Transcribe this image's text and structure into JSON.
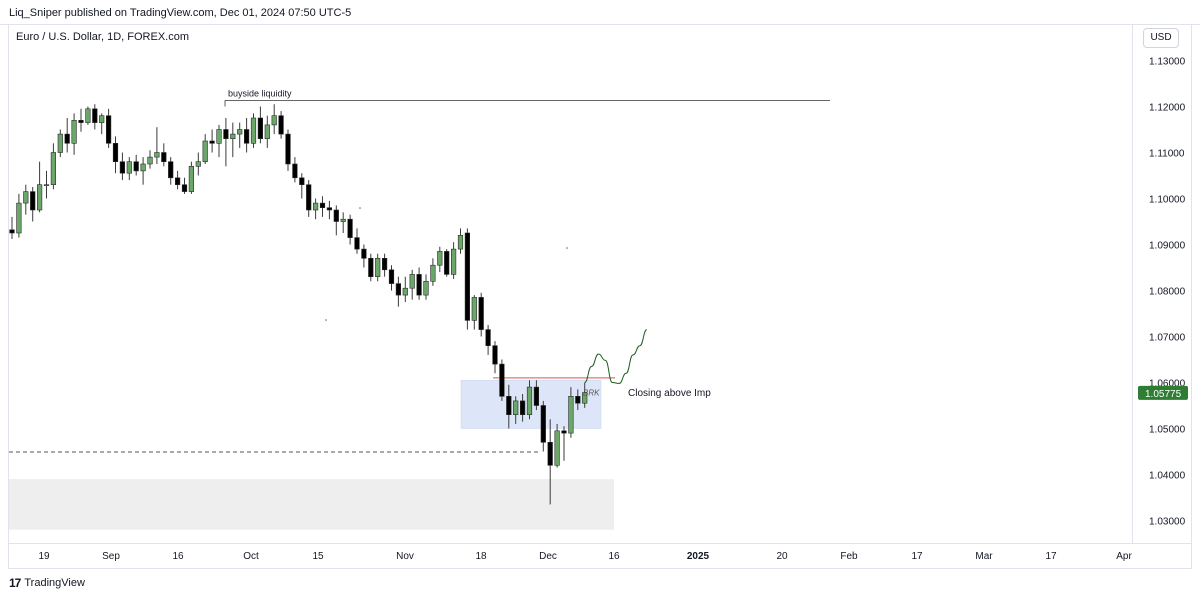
{
  "header": {
    "publish_line": "Liq_Sniper published on TradingView.com, Dec 01, 2024 07:50 UTC-5"
  },
  "chart_title": "Euro / U.S. Dollar, 1D, FOREX.com",
  "currency_button": "USD",
  "footer": {
    "brand": "TradingView",
    "logo_glyph": "17"
  },
  "colors": {
    "bull_fill": "#6aa86a",
    "bull_wick": "#3b3b3b",
    "bear_fill": "#000000",
    "price_label_bg": "#2e7d32",
    "resistance_line": "#e57373",
    "zone_fill": "#dce6f8",
    "demand_fill": "#eeeeee"
  },
  "chart_data": {
    "type": "candlestick",
    "title": "Euro / U.S. Dollar, 1D, FOREX.com",
    "y_axis": {
      "ticks": [
        "1.13000",
        "1.12000",
        "1.11000",
        "1.10000",
        "1.09000",
        "1.08000",
        "1.07000",
        "1.06000",
        "1.05000",
        "1.04000",
        "1.03000"
      ],
      "tick_values": [
        1.13,
        1.12,
        1.11,
        1.1,
        1.09,
        1.08,
        1.07,
        1.06,
        1.05,
        1.04,
        1.03
      ],
      "range": [
        1.028,
        1.135
      ]
    },
    "x_axis": {
      "ticks": [
        "19",
        "Sep",
        "16",
        "Oct",
        "15",
        "Nov",
        "18",
        "Dec",
        "16",
        "2025",
        "20",
        "Feb",
        "17",
        "Mar",
        "17",
        "Apr"
      ],
      "bold_ticks": [
        "2025"
      ]
    },
    "last_price": "1.05775",
    "candles": [
      {
        "o": 1.0932,
        "h": 1.096,
        "l": 1.0912,
        "c": 1.0925
      },
      {
        "o": 1.0925,
        "h": 1.101,
        "l": 1.0915,
        "c": 1.099
      },
      {
        "o": 1.099,
        "h": 1.103,
        "l": 1.0965,
        "c": 1.1015
      },
      {
        "o": 1.1015,
        "h": 1.1025,
        "l": 1.095,
        "c": 1.0975
      },
      {
        "o": 1.0975,
        "h": 1.108,
        "l": 1.097,
        "c": 1.103
      },
      {
        "o": 1.103,
        "h": 1.106,
        "l": 1.1,
        "c": 1.103
      },
      {
        "o": 1.103,
        "h": 1.112,
        "l": 1.102,
        "c": 1.11
      },
      {
        "o": 1.11,
        "h": 1.115,
        "l": 1.109,
        "c": 1.114
      },
      {
        "o": 1.114,
        "h": 1.1175,
        "l": 1.11,
        "c": 1.112
      },
      {
        "o": 1.112,
        "h": 1.1185,
        "l": 1.1095,
        "c": 1.117
      },
      {
        "o": 1.117,
        "h": 1.1195,
        "l": 1.1145,
        "c": 1.1165
      },
      {
        "o": 1.1165,
        "h": 1.12,
        "l": 1.116,
        "c": 1.1195
      },
      {
        "o": 1.1195,
        "h": 1.1205,
        "l": 1.115,
        "c": 1.1165
      },
      {
        "o": 1.1165,
        "h": 1.1185,
        "l": 1.114,
        "c": 1.118
      },
      {
        "o": 1.118,
        "h": 1.1195,
        "l": 1.111,
        "c": 1.112
      },
      {
        "o": 1.112,
        "h": 1.1135,
        "l": 1.1055,
        "c": 1.108
      },
      {
        "o": 1.108,
        "h": 1.11,
        "l": 1.104,
        "c": 1.1055
      },
      {
        "o": 1.1055,
        "h": 1.109,
        "l": 1.104,
        "c": 1.108
      },
      {
        "o": 1.108,
        "h": 1.1095,
        "l": 1.105,
        "c": 1.106
      },
      {
        "o": 1.106,
        "h": 1.109,
        "l": 1.103,
        "c": 1.1075
      },
      {
        "o": 1.1075,
        "h": 1.1105,
        "l": 1.1065,
        "c": 1.109
      },
      {
        "o": 1.109,
        "h": 1.1155,
        "l": 1.1075,
        "c": 1.11
      },
      {
        "o": 1.11,
        "h": 1.112,
        "l": 1.107,
        "c": 1.108
      },
      {
        "o": 1.108,
        "h": 1.109,
        "l": 1.103,
        "c": 1.1045
      },
      {
        "o": 1.1045,
        "h": 1.106,
        "l": 1.102,
        "c": 1.103
      },
      {
        "o": 1.103,
        "h": 1.1045,
        "l": 1.101,
        "c": 1.1015
      },
      {
        "o": 1.1015,
        "h": 1.108,
        "l": 1.101,
        "c": 1.107
      },
      {
        "o": 1.107,
        "h": 1.11,
        "l": 1.105,
        "c": 1.108
      },
      {
        "o": 1.108,
        "h": 1.114,
        "l": 1.1075,
        "c": 1.1125
      },
      {
        "o": 1.1125,
        "h": 1.115,
        "l": 1.11,
        "c": 1.112
      },
      {
        "o": 1.112,
        "h": 1.116,
        "l": 1.109,
        "c": 1.115
      },
      {
        "o": 1.115,
        "h": 1.1175,
        "l": 1.107,
        "c": 1.113
      },
      {
        "o": 1.113,
        "h": 1.1165,
        "l": 1.109,
        "c": 1.114
      },
      {
        "o": 1.114,
        "h": 1.1165,
        "l": 1.111,
        "c": 1.115
      },
      {
        "o": 1.115,
        "h": 1.1175,
        "l": 1.11,
        "c": 1.112
      },
      {
        "o": 1.112,
        "h": 1.1185,
        "l": 1.111,
        "c": 1.1175
      },
      {
        "o": 1.1175,
        "h": 1.12,
        "l": 1.112,
        "c": 1.113
      },
      {
        "o": 1.113,
        "h": 1.118,
        "l": 1.111,
        "c": 1.116
      },
      {
        "o": 1.116,
        "h": 1.1205,
        "l": 1.114,
        "c": 1.118
      },
      {
        "o": 1.118,
        "h": 1.119,
        "l": 1.113,
        "c": 1.114
      },
      {
        "o": 1.114,
        "h": 1.115,
        "l": 1.106,
        "c": 1.1075
      },
      {
        "o": 1.1075,
        "h": 1.109,
        "l": 1.1035,
        "c": 1.1045
      },
      {
        "o": 1.1045,
        "h": 1.1055,
        "l": 1.1,
        "c": 1.103
      },
      {
        "o": 1.103,
        "h": 1.104,
        "l": 1.096,
        "c": 1.0975
      },
      {
        "o": 1.0975,
        "h": 1.1,
        "l": 1.0955,
        "c": 1.099
      },
      {
        "o": 1.099,
        "h": 1.1005,
        "l": 1.096,
        "c": 1.098
      },
      {
        "o": 1.098,
        "h": 1.0995,
        "l": 1.0955,
        "c": 1.0975
      },
      {
        "o": 1.0975,
        "h": 1.0985,
        "l": 1.092,
        "c": 1.095
      },
      {
        "o": 1.095,
        "h": 1.097,
        "l": 1.0925,
        "c": 1.0955
      },
      {
        "o": 1.0955,
        "h": 1.0965,
        "l": 1.09,
        "c": 1.0915
      },
      {
        "o": 1.0915,
        "h": 1.0935,
        "l": 1.088,
        "c": 1.089
      },
      {
        "o": 1.089,
        "h": 1.09,
        "l": 1.085,
        "c": 1.087
      },
      {
        "o": 1.087,
        "h": 1.088,
        "l": 1.082,
        "c": 1.083
      },
      {
        "o": 1.083,
        "h": 1.088,
        "l": 1.082,
        "c": 1.087
      },
      {
        "o": 1.087,
        "h": 1.088,
        "l": 1.083,
        "c": 1.0845
      },
      {
        "o": 1.0845,
        "h": 1.0855,
        "l": 1.08,
        "c": 1.0815
      },
      {
        "o": 1.0815,
        "h": 1.083,
        "l": 1.0765,
        "c": 1.079
      },
      {
        "o": 1.079,
        "h": 1.083,
        "l": 1.0775,
        "c": 1.0805
      },
      {
        "o": 1.0805,
        "h": 1.0845,
        "l": 1.078,
        "c": 1.0835
      },
      {
        "o": 1.0835,
        "h": 1.085,
        "l": 1.078,
        "c": 1.079
      },
      {
        "o": 1.079,
        "h": 1.0835,
        "l": 1.078,
        "c": 1.082
      },
      {
        "o": 1.082,
        "h": 1.087,
        "l": 1.081,
        "c": 1.0855
      },
      {
        "o": 1.0855,
        "h": 1.0895,
        "l": 1.084,
        "c": 1.0885
      },
      {
        "o": 1.0885,
        "h": 1.089,
        "l": 1.083,
        "c": 1.0835
      },
      {
        "o": 1.0835,
        "h": 1.0905,
        "l": 1.0825,
        "c": 1.089
      },
      {
        "o": 1.089,
        "h": 1.0935,
        "l": 1.088,
        "c": 1.092
      },
      {
        "o": 1.0925,
        "h": 1.0935,
        "l": 1.0715,
        "c": 1.0735
      },
      {
        "o": 1.0735,
        "h": 1.079,
        "l": 1.0715,
        "c": 1.0785
      },
      {
        "o": 1.0785,
        "h": 1.0795,
        "l": 1.07,
        "c": 1.0715
      },
      {
        "o": 1.0715,
        "h": 1.0725,
        "l": 1.066,
        "c": 1.068
      },
      {
        "o": 1.068,
        "h": 1.069,
        "l": 1.062,
        "c": 1.064
      },
      {
        "o": 1.064,
        "h": 1.065,
        "l": 1.056,
        "c": 1.057
      },
      {
        "o": 1.057,
        "h": 1.0595,
        "l": 1.05,
        "c": 1.053
      },
      {
        "o": 1.053,
        "h": 1.057,
        "l": 1.051,
        "c": 1.056
      },
      {
        "o": 1.056,
        "h": 1.0575,
        "l": 1.0515,
        "c": 1.053
      },
      {
        "o": 1.053,
        "h": 1.0605,
        "l": 1.052,
        "c": 1.059
      },
      {
        "o": 1.059,
        "h": 1.0605,
        "l": 1.054,
        "c": 1.055
      },
      {
        "o": 1.055,
        "h": 1.056,
        "l": 1.045,
        "c": 1.047
      },
      {
        "o": 1.047,
        "h": 1.052,
        "l": 1.0335,
        "c": 1.042
      },
      {
        "o": 1.042,
        "h": 1.051,
        "l": 1.0415,
        "c": 1.0495
      },
      {
        "o": 1.0495,
        "h": 1.0505,
        "l": 1.043,
        "c": 1.049
      },
      {
        "o": 1.049,
        "h": 1.059,
        "l": 1.048,
        "c": 1.057
      },
      {
        "o": 1.057,
        "h": 1.0585,
        "l": 1.054,
        "c": 1.0555
      },
      {
        "o": 1.0555,
        "h": 1.06,
        "l": 1.0545,
        "c": 1.0578
      }
    ],
    "annotations": {
      "buyside_label": "buyside liquidity",
      "buyside_level": 1.1213,
      "closing_label": "Closing above Imp",
      "brk_label": "BRK",
      "resistance_level": 1.061,
      "dashed_level": 1.0449,
      "zone": {
        "top": 1.0605,
        "bottom": 1.05
      },
      "demand_zone": {
        "top": 1.039,
        "bottom": 1.028
      },
      "projection_path": [
        [
          83,
          1.06
        ],
        [
          84,
          1.0635
        ],
        [
          85,
          1.0662
        ],
        [
          86,
          1.0648
        ],
        [
          87,
          1.06
        ],
        [
          88,
          1.0598
        ],
        [
          89,
          1.062
        ],
        [
          90,
          1.066
        ],
        [
          91,
          1.068
        ],
        [
          92,
          1.0715
        ]
      ]
    }
  }
}
